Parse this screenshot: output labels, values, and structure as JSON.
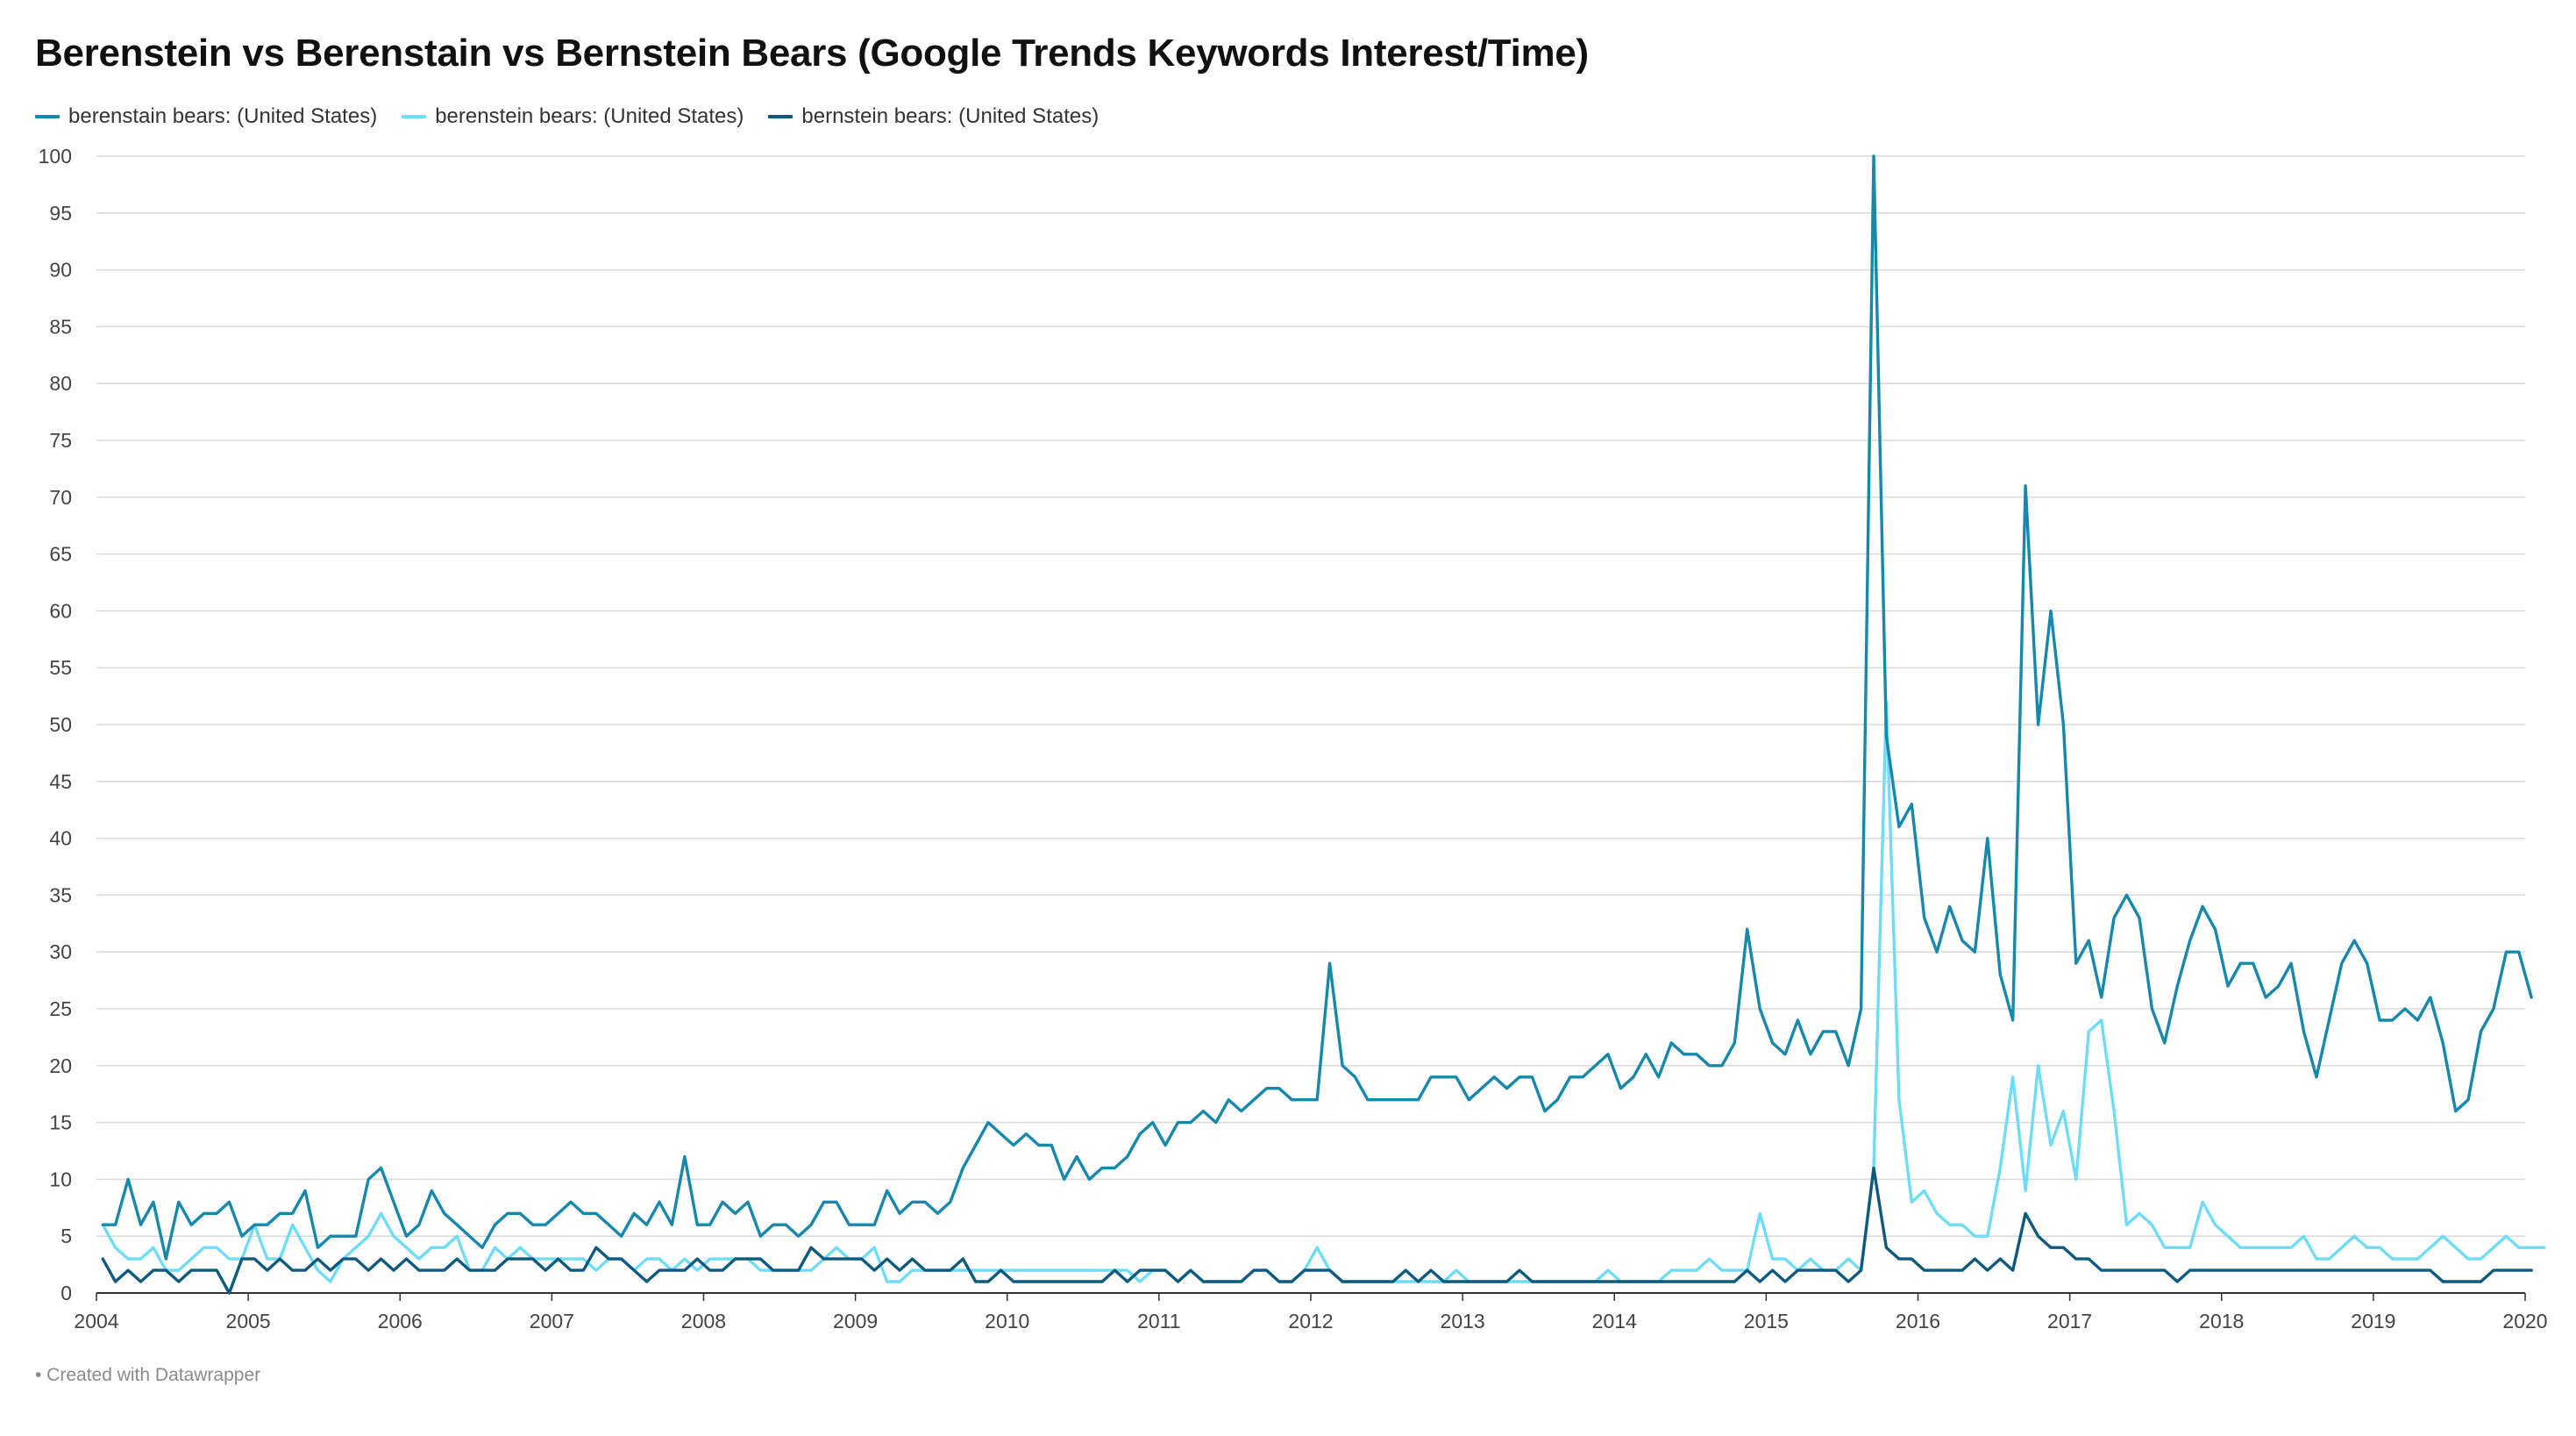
{
  "title": "Berenstein vs Berenstain vs Bernstein Bears (Google Trends Keywords Interest/Time)",
  "footer": "• Created with Datawrapper",
  "chart_data": {
    "type": "line",
    "title": "Berenstein vs Berenstain vs Bernstein Bears (Google Trends Keywords Interest/Time)",
    "xlabel": "",
    "ylabel": "",
    "x_range": [
      2004,
      2020
    ],
    "ylim": [
      0,
      100
    ],
    "y_ticks": [
      0,
      5,
      10,
      15,
      20,
      25,
      30,
      35,
      40,
      45,
      50,
      55,
      60,
      65,
      70,
      75,
      80,
      85,
      90,
      95,
      100
    ],
    "x_ticks": [
      "2004",
      "2005",
      "2006",
      "2007",
      "2008",
      "2009",
      "2010",
      "2011",
      "2012",
      "2013",
      "2014",
      "2015",
      "2016",
      "2017",
      "2018",
      "2019",
      "2020"
    ],
    "grid": true,
    "legend_position": "top-left",
    "x_start": "2004-01",
    "x_step": "monthly",
    "series": [
      {
        "name": "berenstain bears: (United States)",
        "color": "#1588ac",
        "values": [
          6,
          6,
          10,
          6,
          8,
          3,
          8,
          6,
          7,
          7,
          8,
          5,
          6,
          6,
          7,
          7,
          9,
          4,
          5,
          5,
          5,
          10,
          11,
          8,
          5,
          6,
          9,
          7,
          6,
          5,
          4,
          6,
          7,
          7,
          6,
          6,
          7,
          8,
          7,
          7,
          6,
          5,
          7,
          6,
          8,
          6,
          12,
          6,
          6,
          8,
          7,
          8,
          5,
          6,
          6,
          5,
          6,
          8,
          8,
          6,
          6,
          6,
          9,
          7,
          8,
          8,
          7,
          8,
          11,
          13,
          15,
          14,
          13,
          14,
          13,
          13,
          10,
          12,
          10,
          11,
          11,
          12,
          14,
          15,
          13,
          15,
          15,
          16,
          15,
          17,
          16,
          17,
          18,
          18,
          17,
          17,
          17,
          29,
          20,
          19,
          17,
          17,
          17,
          17,
          17,
          19,
          19,
          19,
          17,
          18,
          19,
          18,
          19,
          19,
          16,
          17,
          19,
          19,
          20,
          21,
          18,
          19,
          21,
          19,
          22,
          21,
          21,
          20,
          20,
          22,
          32,
          25,
          22,
          21,
          24,
          21,
          23,
          23,
          20,
          25,
          100,
          49,
          41,
          43,
          33,
          30,
          34,
          31,
          30,
          40,
          28,
          24,
          71,
          50,
          60,
          50,
          29,
          31,
          26,
          33,
          35,
          33,
          25,
          22,
          27,
          31,
          34,
          32,
          27,
          29,
          29,
          26,
          27,
          29,
          23,
          19,
          24,
          29,
          31,
          29,
          24,
          24,
          25,
          24,
          26,
          22,
          16,
          17,
          23,
          25,
          30,
          30,
          26
        ]
      },
      {
        "name": "berenstein bears: (United States)",
        "color": "#6fdcf6",
        "values": [
          6,
          4,
          3,
          3,
          4,
          2,
          2,
          3,
          4,
          4,
          3,
          3,
          6,
          3,
          3,
          6,
          4,
          2,
          1,
          3,
          4,
          5,
          7,
          5,
          4,
          3,
          4,
          4,
          5,
          2,
          2,
          4,
          3,
          4,
          3,
          3,
          3,
          3,
          3,
          2,
          3,
          3,
          2,
          3,
          3,
          2,
          3,
          2,
          3,
          3,
          3,
          3,
          2,
          2,
          2,
          2,
          2,
          3,
          4,
          3,
          3,
          4,
          1,
          1,
          2,
          2,
          2,
          2,
          2,
          2,
          2,
          2,
          2,
          2,
          2,
          2,
          2,
          2,
          2,
          2,
          2,
          2,
          1,
          2,
          2,
          1,
          2,
          1,
          1,
          1,
          1,
          2,
          2,
          1,
          1,
          2,
          4,
          2,
          1,
          1,
          1,
          1,
          1,
          1,
          1,
          1,
          1,
          2,
          1,
          1,
          1,
          1,
          1,
          1,
          1,
          1,
          1,
          1,
          1,
          2,
          1,
          1,
          1,
          1,
          2,
          2,
          2,
          3,
          2,
          2,
          2,
          7,
          3,
          3,
          2,
          3,
          2,
          2,
          3,
          2,
          11,
          52,
          17,
          8,
          9,
          7,
          6,
          6,
          5,
          5,
          11,
          19,
          9,
          20,
          13,
          16,
          10,
          23,
          24,
          16,
          6,
          7,
          6,
          4,
          4,
          4,
          8,
          6,
          5,
          4,
          4,
          4,
          4,
          4,
          5,
          3,
          3,
          4,
          5,
          4,
          4,
          3,
          3,
          3,
          4,
          5,
          4,
          3,
          3,
          4,
          5,
          4,
          4,
          4
        ]
      },
      {
        "name": "bernstein bears: (United States)",
        "color": "#0d5a7e",
        "values": [
          3,
          1,
          2,
          1,
          2,
          2,
          1,
          2,
          2,
          2,
          0,
          3,
          3,
          2,
          3,
          2,
          2,
          3,
          2,
          3,
          3,
          2,
          3,
          2,
          3,
          2,
          2,
          2,
          3,
          2,
          2,
          2,
          3,
          3,
          3,
          2,
          3,
          2,
          2,
          4,
          3,
          3,
          2,
          1,
          2,
          2,
          2,
          3,
          2,
          2,
          3,
          3,
          3,
          2,
          2,
          2,
          4,
          3,
          3,
          3,
          3,
          2,
          3,
          2,
          3,
          2,
          2,
          2,
          3,
          1,
          1,
          2,
          1,
          1,
          1,
          1,
          1,
          1,
          1,
          1,
          2,
          1,
          2,
          2,
          2,
          1,
          2,
          1,
          1,
          1,
          1,
          2,
          2,
          1,
          1,
          2,
          2,
          2,
          1,
          1,
          1,
          1,
          1,
          2,
          1,
          2,
          1,
          1,
          1,
          1,
          1,
          1,
          2,
          1,
          1,
          1,
          1,
          1,
          1,
          1,
          1,
          1,
          1,
          1,
          1,
          1,
          1,
          1,
          1,
          1,
          2,
          1,
          2,
          1,
          2,
          2,
          2,
          2,
          1,
          2,
          11,
          4,
          3,
          3,
          2,
          2,
          2,
          2,
          3,
          2,
          3,
          2,
          7,
          5,
          4,
          4,
          3,
          3,
          2,
          2,
          2,
          2,
          2,
          2,
          1,
          2,
          2,
          2,
          2,
          2,
          2,
          2,
          2,
          2,
          2,
          2,
          2,
          2,
          2,
          2,
          2,
          2,
          2,
          2,
          2,
          1,
          1,
          1,
          1,
          2,
          2,
          2,
          2
        ]
      }
    ]
  }
}
